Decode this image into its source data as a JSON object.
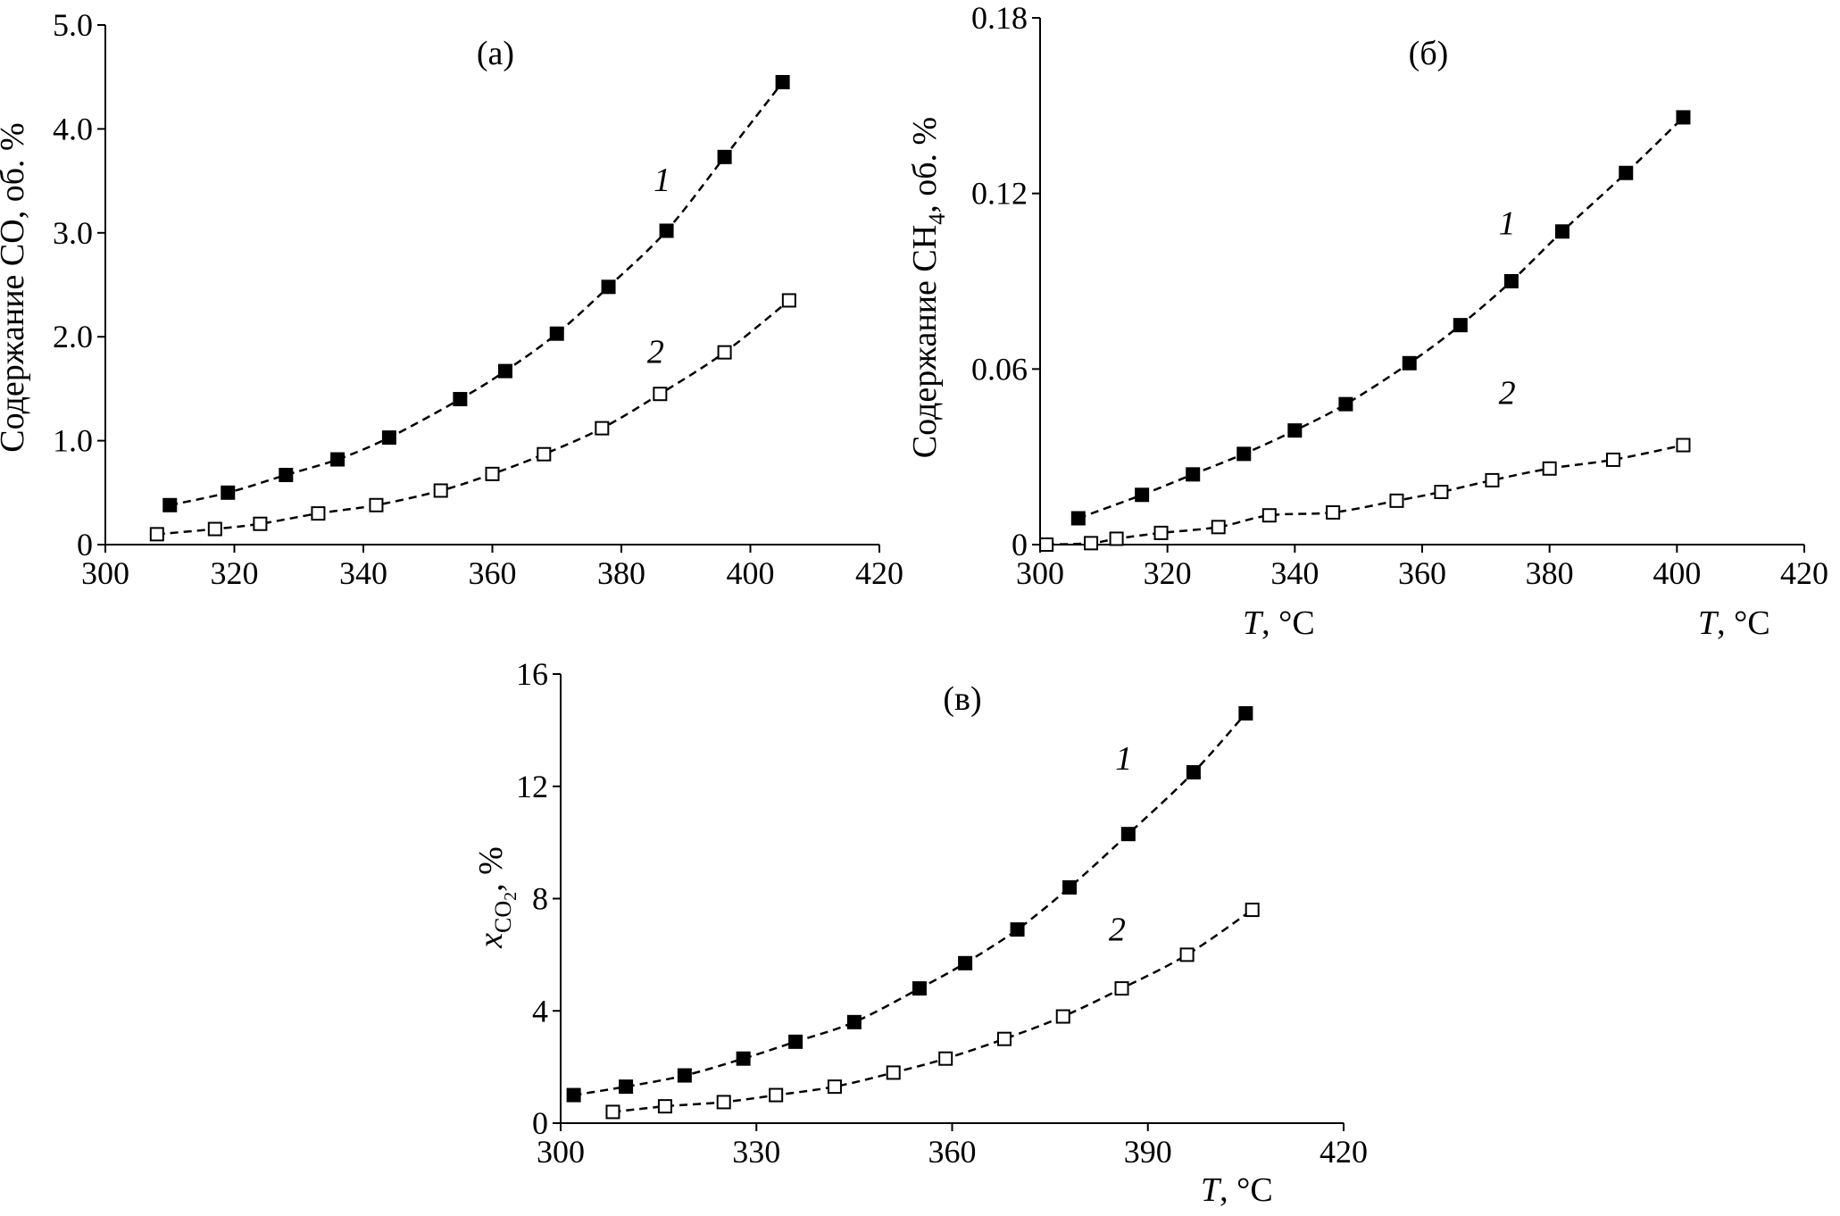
{
  "chart_data": [
    {
      "id": "a",
      "type": "scatter",
      "panel_label": "(а)",
      "ylabel": "Содержание CO, об. %",
      "xlabel": "",
      "xlim": [
        300,
        420
      ],
      "ylim": [
        0,
        5
      ],
      "xticks": [
        300,
        320,
        340,
        360,
        380,
        400,
        420
      ],
      "xtick_labels": [
        "300",
        "320",
        "340",
        "360",
        "380",
        "400",
        "420"
      ],
      "yticks": [
        0,
        1,
        2,
        3,
        4,
        5
      ],
      "ytick_labels": [
        "0",
        "1.0",
        "2.0",
        "3.0",
        "4.0",
        "5.0"
      ],
      "series": [
        {
          "name": "1",
          "label": "1",
          "marker": "filled-square",
          "label_pos": [
            385,
            3.4
          ],
          "x": [
            310,
            319,
            328,
            336,
            344,
            355,
            362,
            370,
            378,
            387,
            396,
            405
          ],
          "y": [
            0.38,
            0.5,
            0.67,
            0.82,
            1.03,
            1.4,
            1.67,
            2.03,
            2.48,
            3.02,
            3.73,
            4.45
          ]
        },
        {
          "name": "2",
          "label": "2",
          "marker": "open-square",
          "label_pos": [
            384,
            1.75
          ],
          "x": [
            308,
            317,
            324,
            333,
            342,
            352,
            360,
            368,
            377,
            386,
            396,
            406
          ],
          "y": [
            0.1,
            0.15,
            0.2,
            0.3,
            0.38,
            0.52,
            0.68,
            0.87,
            1.12,
            1.45,
            1.85,
            2.35
          ]
        }
      ]
    },
    {
      "id": "b",
      "type": "scatter",
      "panel_label": "(б)",
      "ylabel_main": "Содержание CH",
      "ylabel_sub": "4",
      "ylabel_tail": ", об. %",
      "xlabel_italic": "T",
      "xlabel_rest": ", °C",
      "xlim": [
        300,
        420
      ],
      "ylim": [
        0,
        0.18
      ],
      "xticks": [
        300,
        320,
        340,
        360,
        380,
        400,
        420
      ],
      "xtick_labels": [
        "300",
        "320",
        "340",
        "360",
        "380",
        "400",
        "420"
      ],
      "yticks": [
        0,
        0.06,
        0.12,
        0.18
      ],
      "ytick_labels": [
        "0",
        "0.06",
        "0.12",
        "0.18"
      ],
      "series": [
        {
          "name": "1",
          "label": "1",
          "marker": "filled-square",
          "label_pos": [
            372,
            0.106
          ],
          "x": [
            306,
            316,
            324,
            332,
            340,
            348,
            358,
            366,
            374,
            382,
            392,
            401
          ],
          "y": [
            0.009,
            0.017,
            0.024,
            0.031,
            0.039,
            0.048,
            0.062,
            0.075,
            0.09,
            0.107,
            0.127,
            0.146
          ]
        },
        {
          "name": "2",
          "label": "2",
          "marker": "open-square",
          "label_pos": [
            372,
            0.048
          ],
          "x": [
            301,
            308,
            312,
            319,
            328,
            336,
            346,
            356,
            363,
            371,
            380,
            390,
            401
          ],
          "y": [
            0.0,
            0.0005,
            0.002,
            0.004,
            0.006,
            0.01,
            0.011,
            0.015,
            0.018,
            0.022,
            0.026,
            0.029,
            0.034
          ]
        }
      ]
    },
    {
      "id": "v",
      "type": "scatter",
      "panel_label": "(в)",
      "ylabel_main": "x",
      "ylabel_sub": "CO",
      "ylabel_subsub": "2",
      "ylabel_tail": ", %",
      "xlabel_italic": "T",
      "xlabel_rest": ", °C",
      "xlim": [
        300,
        420
      ],
      "ylim": [
        0,
        16
      ],
      "xticks": [
        300,
        330,
        360,
        390,
        420
      ],
      "xtick_labels": [
        "300",
        "330",
        "360",
        "390",
        "420"
      ],
      "yticks": [
        0,
        4,
        8,
        12,
        16
      ],
      "ytick_labels": [
        "0",
        "4",
        "8",
        "12",
        "16"
      ],
      "series": [
        {
          "name": "1",
          "label": "1",
          "marker": "filled-square",
          "label_pos": [
            385,
            12.6
          ],
          "x": [
            302,
            310,
            319,
            328,
            336,
            345,
            355,
            362,
            370,
            378,
            387,
            397,
            405
          ],
          "y": [
            1.0,
            1.3,
            1.7,
            2.3,
            2.9,
            3.6,
            4.8,
            5.7,
            6.9,
            8.4,
            10.3,
            12.5,
            14.6
          ]
        },
        {
          "name": "2",
          "label": "2",
          "marker": "open-square",
          "label_pos": [
            384,
            6.5
          ],
          "x": [
            308,
            316,
            325,
            333,
            342,
            351,
            359,
            368,
            377,
            386,
            396,
            406
          ],
          "y": [
            0.4,
            0.6,
            0.75,
            1.0,
            1.3,
            1.8,
            2.3,
            3.0,
            3.8,
            4.8,
            6.0,
            7.6
          ]
        }
      ]
    }
  ]
}
